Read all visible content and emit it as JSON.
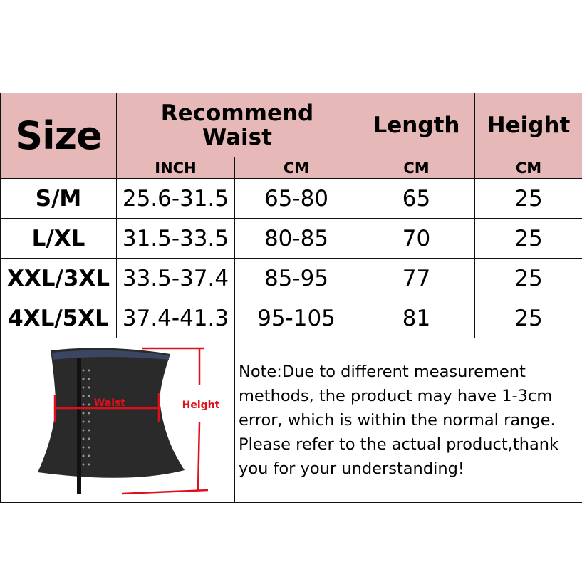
{
  "header": {
    "size": "Size",
    "recommend_waist": "Recommend Waist",
    "length": "Length",
    "height": "Height",
    "units": [
      "INCH",
      "CM",
      "CM",
      "CM"
    ]
  },
  "rows": [
    {
      "size": "S/M",
      "inch": "25.6-31.5",
      "cm": "65-80",
      "length": "65",
      "height": "25"
    },
    {
      "size": "L/XL",
      "inch": "31.5-33.5",
      "cm": "80-85",
      "length": "70",
      "height": "25"
    },
    {
      "size": "XXL/3XL",
      "inch": "33.5-37.4",
      "cm": "85-95",
      "length": "77",
      "height": "25"
    },
    {
      "size": "4XL/5XL",
      "inch": "37.4-41.3",
      "cm": "95-105",
      "length": "81",
      "height": "25"
    }
  ],
  "diagram": {
    "waist_label": "Waist",
    "height_label": "Height"
  },
  "note": "Note:Due to different measurement methods, the product may have 1-3cm error, which is within the normal range. Please refer to the actual product,thank you for your understanding!",
  "colors": {
    "header_bg": "#e6b8b7",
    "annotation": "#e0101a"
  }
}
